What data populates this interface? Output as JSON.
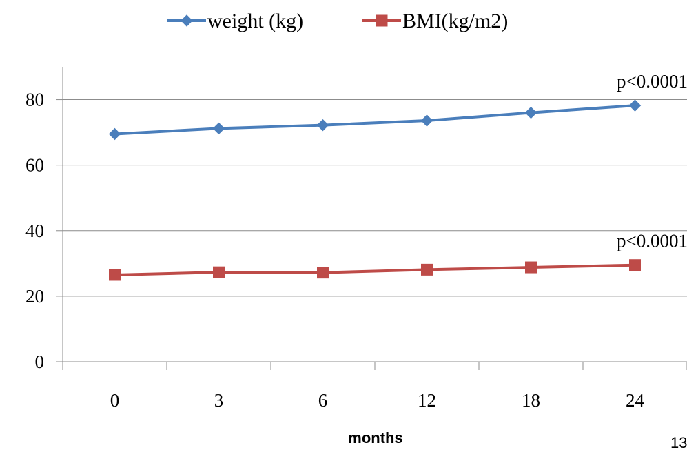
{
  "chart_data": {
    "type": "line",
    "title": "",
    "xlabel": "months",
    "ylabel": "",
    "categories": [
      "0",
      "3",
      "6",
      "12",
      "18",
      "24"
    ],
    "ylim": [
      0,
      90
    ],
    "yticks": [
      0,
      20,
      40,
      60,
      80
    ],
    "grid": "horizontal",
    "legend_position": "top",
    "series": [
      {
        "name": "weight (kg)",
        "values": [
          69.5,
          71.2,
          72.2,
          73.6,
          76.0,
          78.2
        ],
        "color": "#4a7ebb",
        "marker": "diamond"
      },
      {
        "name": "BMI(kg/m2)",
        "values": [
          26.5,
          27.3,
          27.2,
          28.1,
          28.8,
          29.5
        ],
        "color": "#be4b48",
        "marker": "square"
      }
    ],
    "annotations": [
      {
        "text": "p<0.0001",
        "series": 0,
        "point": 5
      },
      {
        "text": "p<0.0001",
        "series": 1,
        "point": 5
      }
    ]
  },
  "footer": {
    "page_number": "13"
  }
}
